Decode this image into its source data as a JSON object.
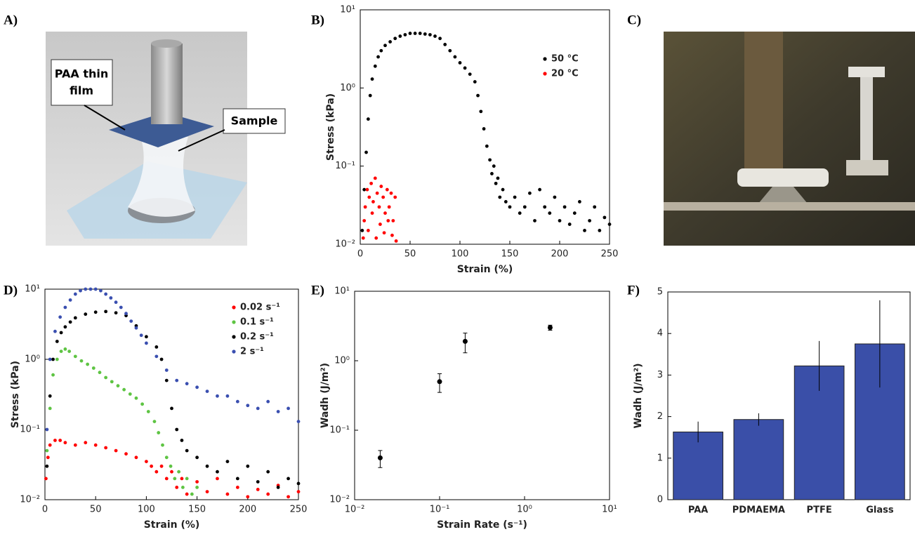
{
  "illustration": {
    "panel": "A)",
    "labels": [
      [
        "PAA thin",
        "film"
      ],
      [
        "Sample"
      ]
    ]
  },
  "photo": {
    "panel": "C)"
  },
  "chart_data": [
    {
      "panel": "B)",
      "type": "scatter",
      "xlabel": "Strain (%)",
      "ylabel": "Stress (kPa)",
      "xlim": [
        0,
        250
      ],
      "xticks": [
        0,
        50,
        100,
        150,
        200,
        250
      ],
      "xscale": "linear",
      "ylim": [
        0.01,
        10
      ],
      "yscale": "log",
      "yticks": [
        {
          "value": 0.01,
          "label": "10⁻²"
        },
        {
          "value": 0.1,
          "label": "10⁻¹"
        },
        {
          "value": 1,
          "label": "10⁰"
        },
        {
          "value": 10,
          "label": "10¹"
        }
      ],
      "legend": "upper right",
      "series": [
        {
          "name": "50 °C",
          "color": "#000000",
          "x": [
            2,
            4,
            6,
            8,
            10,
            12,
            15,
            18,
            21,
            25,
            30,
            35,
            40,
            45,
            50,
            55,
            60,
            65,
            70,
            75,
            80,
            85,
            90,
            95,
            100,
            105,
            110,
            115,
            118,
            121,
            124,
            127,
            130,
            132,
            134,
            136,
            138,
            140,
            143,
            146,
            150,
            155,
            160,
            165,
            170,
            175,
            180,
            185,
            190,
            195,
            200,
            205,
            210,
            215,
            220,
            225,
            230,
            235,
            240,
            245,
            250
          ],
          "values": [
            0.015,
            0.05,
            0.15,
            0.4,
            0.8,
            1.3,
            1.9,
            2.5,
            3.0,
            3.5,
            3.9,
            4.3,
            4.6,
            4.8,
            5.0,
            5.0,
            5.0,
            4.9,
            4.8,
            4.6,
            4.3,
            3.6,
            3.0,
            2.5,
            2.1,
            1.8,
            1.5,
            1.2,
            0.8,
            0.5,
            0.3,
            0.18,
            0.12,
            0.08,
            0.1,
            0.06,
            0.07,
            0.04,
            0.05,
            0.035,
            0.03,
            0.04,
            0.025,
            0.03,
            0.045,
            0.02,
            0.05,
            0.03,
            0.025,
            0.04,
            0.02,
            0.03,
            0.018,
            0.025,
            0.035,
            0.015,
            0.02,
            0.03,
            0.015,
            0.022,
            0.018
          ]
        },
        {
          "name": "20 °C",
          "color": "#ff0000",
          "x": [
            3,
            5,
            7,
            9,
            11,
            13,
            15,
            17,
            19,
            21,
            23,
            25,
            27,
            29,
            31,
            33,
            35,
            4,
            8,
            12,
            16,
            20,
            24,
            28,
            32,
            36
          ],
          "values": [
            0.012,
            0.03,
            0.05,
            0.04,
            0.06,
            0.035,
            0.07,
            0.045,
            0.03,
            0.055,
            0.04,
            0.025,
            0.05,
            0.03,
            0.045,
            0.02,
            0.04,
            0.02,
            0.015,
            0.025,
            0.012,
            0.018,
            0.014,
            0.02,
            0.013,
            0.011
          ]
        }
      ]
    },
    {
      "panel": "D)",
      "type": "scatter",
      "xlabel": "Strain (%)",
      "ylabel": "Stress (kPa)",
      "xlim": [
        0,
        250
      ],
      "xticks": [
        0,
        50,
        100,
        150,
        200,
        250
      ],
      "xscale": "linear",
      "ylim": [
        0.01,
        10
      ],
      "yscale": "log",
      "yticks": [
        {
          "value": 0.01,
          "label": "10⁻²"
        },
        {
          "value": 0.1,
          "label": "10⁻¹"
        },
        {
          "value": 1,
          "label": "10⁰"
        },
        {
          "value": 10,
          "label": "10¹"
        }
      ],
      "legend": "upper right",
      "series": [
        {
          "name": "0.02 s⁻¹",
          "color": "#ff0000",
          "x": [
            1,
            3,
            5,
            10,
            15,
            20,
            30,
            40,
            50,
            60,
            70,
            80,
            90,
            100,
            105,
            110,
            115,
            120,
            125,
            130,
            135,
            140,
            150,
            160,
            170,
            180,
            190,
            200,
            210,
            220,
            230,
            240,
            250
          ],
          "values": [
            0.02,
            0.04,
            0.06,
            0.07,
            0.07,
            0.065,
            0.06,
            0.065,
            0.06,
            0.055,
            0.05,
            0.045,
            0.04,
            0.035,
            0.03,
            0.025,
            0.03,
            0.02,
            0.025,
            0.015,
            0.02,
            0.012,
            0.018,
            0.013,
            0.02,
            0.012,
            0.015,
            0.011,
            0.014,
            0.012,
            0.016,
            0.011,
            0.013
          ]
        },
        {
          "name": "0.1 s⁻¹",
          "color": "#5ec443",
          "x": [
            2,
            5,
            8,
            12,
            16,
            20,
            24,
            30,
            36,
            42,
            48,
            54,
            60,
            66,
            72,
            78,
            84,
            90,
            96,
            102,
            108,
            112,
            116,
            120,
            124,
            128,
            132,
            136,
            140,
            145,
            150
          ],
          "values": [
            0.05,
            0.2,
            0.6,
            1.0,
            1.3,
            1.4,
            1.3,
            1.1,
            0.95,
            0.85,
            0.75,
            0.65,
            0.55,
            0.48,
            0.42,
            0.37,
            0.32,
            0.28,
            0.23,
            0.18,
            0.13,
            0.09,
            0.06,
            0.04,
            0.03,
            0.02,
            0.025,
            0.015,
            0.02,
            0.012,
            0.015
          ]
        },
        {
          "name": "0.2 s⁻¹",
          "color": "#000000",
          "x": [
            2,
            5,
            8,
            12,
            16,
            20,
            25,
            30,
            40,
            50,
            60,
            70,
            80,
            90,
            100,
            110,
            115,
            120,
            125,
            130,
            135,
            140,
            150,
            160,
            170,
            180,
            190,
            200,
            210,
            220,
            230,
            240,
            250
          ],
          "values": [
            0.03,
            0.3,
            1.0,
            1.8,
            2.4,
            2.9,
            3.4,
            3.9,
            4.4,
            4.7,
            4.8,
            4.6,
            4.2,
            3.0,
            2.1,
            1.5,
            1.0,
            0.5,
            0.2,
            0.1,
            0.07,
            0.05,
            0.04,
            0.03,
            0.025,
            0.035,
            0.02,
            0.03,
            0.018,
            0.025,
            0.015,
            0.02,
            0.017
          ]
        },
        {
          "name": "2 s⁻¹",
          "color": "#3a4fb0",
          "x": [
            2,
            5,
            10,
            15,
            20,
            25,
            30,
            35,
            40,
            45,
            50,
            55,
            60,
            65,
            70,
            75,
            80,
            85,
            90,
            95,
            100,
            110,
            120,
            130,
            140,
            150,
            160,
            170,
            180,
            190,
            200,
            210,
            220,
            230,
            240,
            250
          ],
          "values": [
            0.1,
            1.0,
            2.5,
            4.0,
            5.5,
            7.0,
            8.5,
            9.5,
            10,
            10,
            10,
            9.5,
            8.5,
            7.5,
            6.5,
            5.5,
            4.5,
            3.5,
            2.8,
            2.2,
            1.7,
            1.1,
            0.7,
            0.5,
            0.45,
            0.4,
            0.35,
            0.3,
            0.3,
            0.25,
            0.22,
            0.2,
            0.25,
            0.18,
            0.2,
            0.13
          ]
        }
      ]
    },
    {
      "panel": "E)",
      "type": "scatter",
      "xlabel": "Strain Rate (s⁻¹)",
      "ylabel": "Wadh (J/m²)",
      "xlim": [
        0.01,
        10
      ],
      "xscale": "log",
      "xticks": [
        {
          "value": 0.01,
          "label": "10⁻²"
        },
        {
          "value": 0.1,
          "label": "10⁻¹"
        },
        {
          "value": 1,
          "label": "10⁰"
        },
        {
          "value": 10,
          "label": "10¹"
        }
      ],
      "ylim": [
        0.01,
        10
      ],
      "yscale": "log",
      "yticks": [
        {
          "value": 0.01,
          "label": "10⁻²"
        },
        {
          "value": 0.1,
          "label": "10⁻¹"
        },
        {
          "value": 1,
          "label": "10⁰"
        },
        {
          "value": 10,
          "label": "10¹"
        }
      ],
      "series": [
        {
          "color": "#000000",
          "x": [
            0.02,
            0.1,
            0.2,
            2
          ],
          "values": [
            0.04,
            0.5,
            1.9,
            3.0
          ],
          "errors": [
            0.011,
            0.15,
            0.6,
            0.25
          ]
        }
      ]
    },
    {
      "panel": "F)",
      "type": "bar",
      "ylabel": "Wadh (J/m²)",
      "categories": [
        "PAA",
        "PDMAEMA",
        "PTFE",
        "Glass"
      ],
      "values": [
        1.63,
        1.93,
        3.22,
        3.75
      ],
      "errors": [
        0.25,
        0.15,
        0.6,
        1.05
      ],
      "color": "#3a4fa8",
      "ylim": [
        0,
        5
      ],
      "yticks": [
        0,
        1,
        2,
        3,
        4,
        5
      ]
    }
  ]
}
